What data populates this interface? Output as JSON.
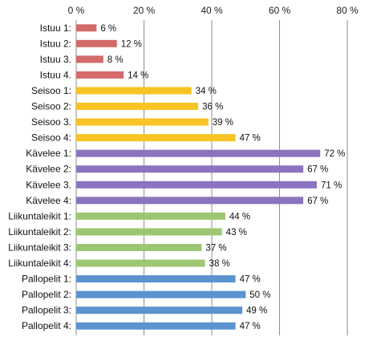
{
  "chart_data": {
    "type": "bar",
    "orientation": "horizontal",
    "xlim": [
      0,
      80
    ],
    "x_ticks": [
      0,
      20,
      40,
      60,
      80
    ],
    "x_tick_labels": [
      "0 %",
      "20 %",
      "40 %",
      "60 %",
      "80 %"
    ],
    "x_axis_position": "top",
    "grid": true,
    "legend": "none",
    "categories": [
      "Istuu 1:",
      "Istuu 2:",
      "Istuu 3.",
      "Istuu 4.",
      "Seisoo 1:",
      "Seisoo 2:",
      "Seisoo 3.",
      "Seisoo 4:",
      "Kävelee 1:",
      "Kävelee 2:",
      "Kävelee 3.",
      "Kävelee 4:",
      "Liikuntaleikit 1:",
      "Liikuntaleikit 2:",
      "Liikuntaleikit 3:",
      "Liikuntaleikit 4:",
      "Pallopelit 1:",
      "Pallopelit 2:",
      "Pallopelit 3:",
      "Pallopelit 4:"
    ],
    "values": [
      6,
      12,
      8,
      14,
      34,
      36,
      39,
      47,
      72,
      67,
      71,
      67,
      44,
      43,
      37,
      38,
      47,
      50,
      49,
      47
    ],
    "data_labels": [
      "6 %",
      "12 %",
      "8 %",
      "14 %",
      "34 %",
      "36 %",
      "39 %",
      "47 %",
      "72 %",
      "67 %",
      "71 %",
      "67 %",
      "44 %",
      "43 %",
      "37 %",
      "38 %",
      "47 %",
      "50 %",
      "49 %",
      "47 %"
    ],
    "groups": [
      {
        "color": "#d46a6a",
        "size": 4
      },
      {
        "color": "#f7c325",
        "size": 4
      },
      {
        "color": "#8c73bf",
        "size": 4
      },
      {
        "color": "#9dc672",
        "size": 4
      },
      {
        "color": "#5b93cf",
        "size": 4
      }
    ],
    "grid_color": "#8f8f8f"
  }
}
